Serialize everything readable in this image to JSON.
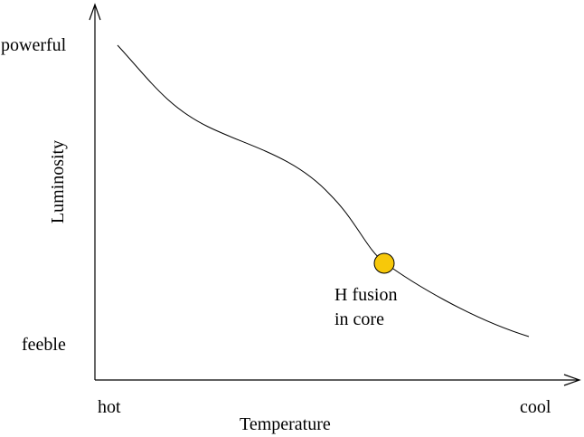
{
  "axes": {
    "x_label": "Temperature",
    "y_label": "Luminosity",
    "x_left_label": "hot",
    "x_right_label": "cool",
    "y_top_label": "powerful",
    "y_bottom_label": "feeble"
  },
  "marker": {
    "label_line1": "H fusion",
    "label_line2": "in core",
    "fill_color": "#f7c80a",
    "stroke_color": "#000000"
  },
  "colors": {
    "axis": "#000000",
    "curve": "#000000",
    "background": "#ffffff"
  }
}
